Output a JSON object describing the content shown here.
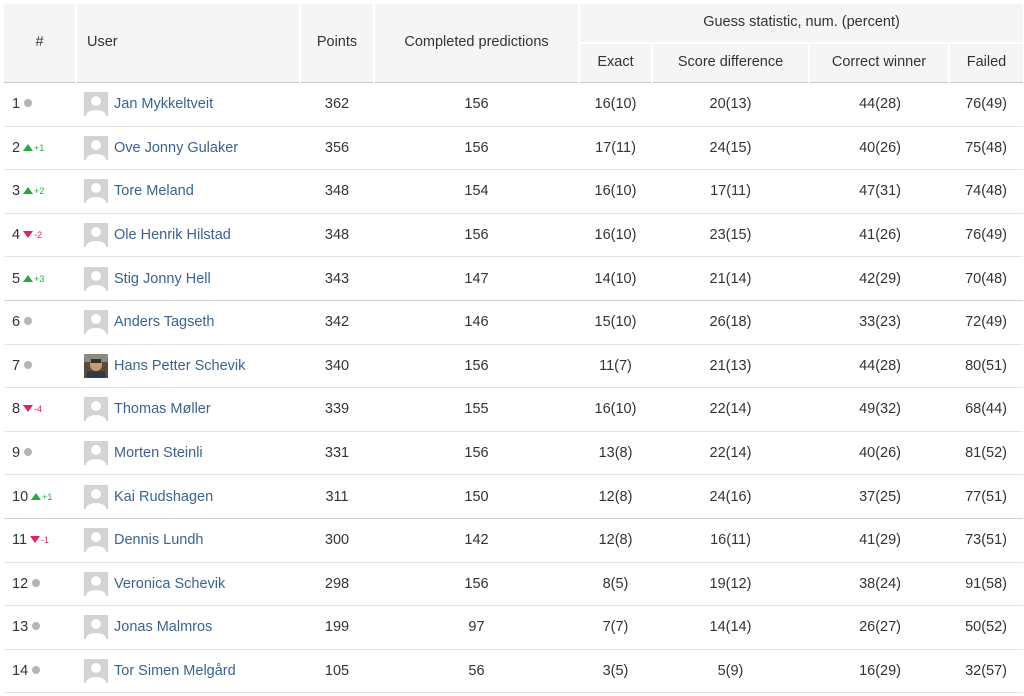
{
  "header": {
    "rank": "#",
    "user": "User",
    "points": "Points",
    "completed": "Completed predictions",
    "guess_group": "Guess statistic, num. (percent)",
    "exact": "Exact",
    "score_difference": "Score difference",
    "correct_winner": "Correct winner",
    "failed": "Failed"
  },
  "colors": {
    "link": "#3a6391",
    "up": "#27a844",
    "down": "#d8265f",
    "neutral": "#b5b5b5",
    "header_bg": "#f5f5f5"
  },
  "rows": [
    {
      "rank": "1",
      "trend": "same",
      "change": "",
      "avatar": "default",
      "name": "Jan Mykkeltveit",
      "points": "362",
      "completed": "156",
      "exact": "16(10)",
      "score_difference": "20(13)",
      "correct_winner": "44(28)",
      "failed": "76(49)"
    },
    {
      "rank": "2",
      "trend": "up",
      "change": "+1",
      "avatar": "default",
      "name": "Ove Jonny Gulaker",
      "points": "356",
      "completed": "156",
      "exact": "17(11)",
      "score_difference": "24(15)",
      "correct_winner": "40(26)",
      "failed": "75(48)"
    },
    {
      "rank": "3",
      "trend": "up",
      "change": "+2",
      "avatar": "default",
      "name": "Tore Meland",
      "points": "348",
      "completed": "154",
      "exact": "16(10)",
      "score_difference": "17(11)",
      "correct_winner": "47(31)",
      "failed": "74(48)"
    },
    {
      "rank": "4",
      "trend": "down",
      "change": "-2",
      "avatar": "default",
      "name": "Ole Henrik Hilstad",
      "points": "348",
      "completed": "156",
      "exact": "16(10)",
      "score_difference": "23(15)",
      "correct_winner": "41(26)",
      "failed": "76(49)"
    },
    {
      "rank": "5",
      "trend": "up",
      "change": "+3",
      "avatar": "default",
      "name": "Stig Jonny Hell",
      "points": "343",
      "completed": "147",
      "exact": "14(10)",
      "score_difference": "21(14)",
      "correct_winner": "42(29)",
      "failed": "70(48)"
    },
    {
      "rank": "6",
      "trend": "same",
      "change": "",
      "avatar": "default",
      "name": "Anders Tagseth",
      "points": "342",
      "completed": "146",
      "exact": "15(10)",
      "score_difference": "26(18)",
      "correct_winner": "33(23)",
      "failed": "72(49)"
    },
    {
      "rank": "7",
      "trend": "same",
      "change": "",
      "avatar": "photo",
      "name": "Hans Petter Schevik",
      "points": "340",
      "completed": "156",
      "exact": "11(7)",
      "score_difference": "21(13)",
      "correct_winner": "44(28)",
      "failed": "80(51)"
    },
    {
      "rank": "8",
      "trend": "down",
      "change": "-4",
      "avatar": "default",
      "name": "Thomas Møller",
      "points": "339",
      "completed": "155",
      "exact": "16(10)",
      "score_difference": "22(14)",
      "correct_winner": "49(32)",
      "failed": "68(44)"
    },
    {
      "rank": "9",
      "trend": "same",
      "change": "",
      "avatar": "default",
      "name": "Morten Steinli",
      "points": "331",
      "completed": "156",
      "exact": "13(8)",
      "score_difference": "22(14)",
      "correct_winner": "40(26)",
      "failed": "81(52)"
    },
    {
      "rank": "10",
      "trend": "up",
      "change": "+1",
      "avatar": "default",
      "name": "Kai Rudshagen",
      "points": "311",
      "completed": "150",
      "exact": "12(8)",
      "score_difference": "24(16)",
      "correct_winner": "37(25)",
      "failed": "77(51)"
    },
    {
      "rank": "11",
      "trend": "down",
      "change": "-1",
      "avatar": "default",
      "name": "Dennis Lundh",
      "points": "300",
      "completed": "142",
      "exact": "12(8)",
      "score_difference": "16(11)",
      "correct_winner": "41(29)",
      "failed": "73(51)"
    },
    {
      "rank": "12",
      "trend": "same",
      "change": "",
      "avatar": "default",
      "name": "Veronica Schevik",
      "points": "298",
      "completed": "156",
      "exact": "8(5)",
      "score_difference": "19(12)",
      "correct_winner": "38(24)",
      "failed": "91(58)"
    },
    {
      "rank": "13",
      "trend": "same",
      "change": "",
      "avatar": "default",
      "name": "Jonas Malmros",
      "points": "199",
      "completed": "97",
      "exact": "7(7)",
      "score_difference": "14(14)",
      "correct_winner": "26(27)",
      "failed": "50(52)"
    },
    {
      "rank": "14",
      "trend": "same",
      "change": "",
      "avatar": "default",
      "name": "Tor Simen Melgård",
      "points": "105",
      "completed": "56",
      "exact": "3(5)",
      "score_difference": "5(9)",
      "correct_winner": "16(29)",
      "failed": "32(57)"
    }
  ]
}
